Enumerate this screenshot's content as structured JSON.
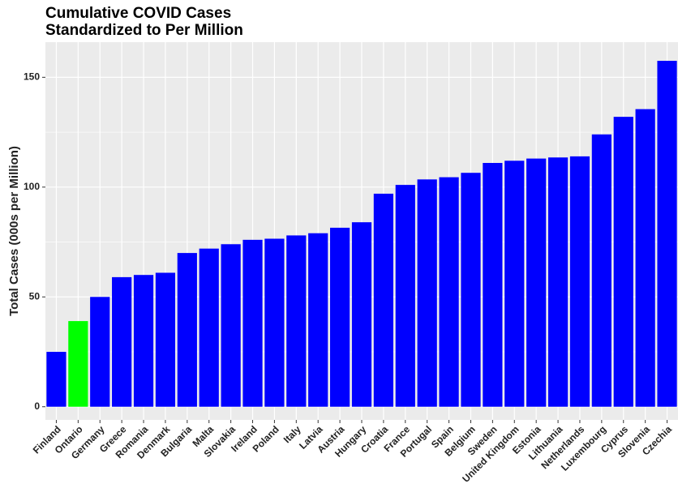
{
  "chart_data": {
    "type": "bar",
    "title": "Cumulative COVID Cases\nStandardized to Per Million",
    "y_label": "Total Cases (000s per Million)",
    "categories": [
      "Finland",
      "Ontario",
      "Germany",
      "Greece",
      "Romania",
      "Denmark",
      "Bulgaria",
      "Malta",
      "Slovakia",
      "Ireland",
      "Poland",
      "Italy",
      "Latvia",
      "Austria",
      "Hungary",
      "Croatia",
      "France",
      "Portugal",
      "Spain",
      "Belgium",
      "Sweden",
      "United Kingdom",
      "Estonia",
      "Lithuania",
      "Netherlands",
      "Luxembourg",
      "Cyprus",
      "Slovenia",
      "Czechia"
    ],
    "values": [
      25,
      39,
      50,
      59,
      60,
      61,
      70,
      72,
      74,
      76,
      76.5,
      78,
      79,
      81.5,
      84,
      97,
      101,
      103.5,
      104.5,
      106.5,
      111,
      112,
      113,
      113.5,
      114,
      124,
      132,
      135.5,
      157.5
    ],
    "colors": [
      "#0000ff",
      "#00ff00",
      "#0000ff",
      "#0000ff",
      "#0000ff",
      "#0000ff",
      "#0000ff",
      "#0000ff",
      "#0000ff",
      "#0000ff",
      "#0000ff",
      "#0000ff",
      "#0000ff",
      "#0000ff",
      "#0000ff",
      "#0000ff",
      "#0000ff",
      "#0000ff",
      "#0000ff",
      "#0000ff",
      "#0000ff",
      "#0000ff",
      "#0000ff",
      "#0000ff",
      "#0000ff",
      "#0000ff",
      "#0000ff",
      "#0000ff",
      "#0000ff"
    ],
    "ylim": [
      -6,
      166
    ],
    "yticks": [
      0,
      50,
      100,
      150
    ],
    "grid": true
  }
}
